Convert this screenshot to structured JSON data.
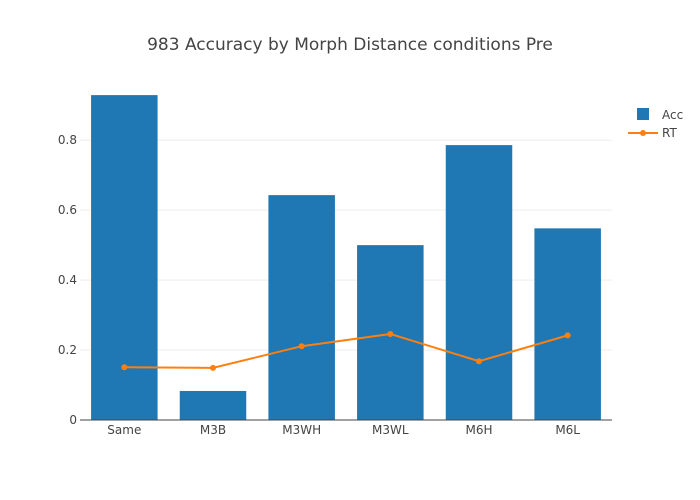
{
  "chart_data": {
    "type": "bar",
    "title": "983 Accuracy by Morph Distance conditions Pre",
    "xlabel": "",
    "ylabel": "",
    "categories": [
      "Same",
      "M3B",
      "M3WH",
      "M3WL",
      "M6H",
      "M6L"
    ],
    "ylim": [
      0,
      0.9722
    ],
    "yticks": [
      0,
      0.2,
      0.4,
      0.6,
      0.8
    ],
    "ytick_labels": [
      "0",
      "0.2",
      "0.4",
      "0.6",
      "0.8"
    ],
    "grid": true,
    "legend_position": "top-right",
    "series": [
      {
        "name": "Acc",
        "type": "bar",
        "color": "#1f77b4",
        "values": [
          0.929,
          0.083,
          0.643,
          0.5,
          0.786,
          0.548
        ]
      },
      {
        "name": "RT",
        "type": "line",
        "color": "#ff7f0e",
        "values": [
          0.151,
          0.149,
          0.211,
          0.246,
          0.168,
          0.242
        ]
      }
    ]
  }
}
